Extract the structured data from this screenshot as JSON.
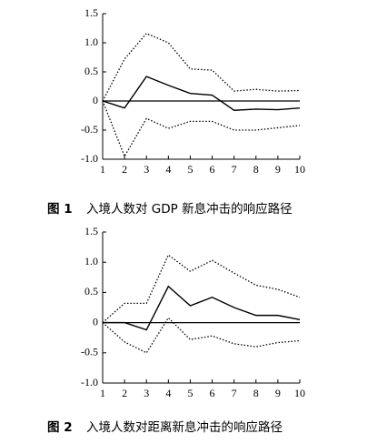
{
  "chart_data": [
    {
      "type": "line",
      "caption_label": "图 1",
      "caption": "入境人数对 GDP 新息冲击的响应路径",
      "x": [
        1,
        2,
        3,
        4,
        5,
        6,
        7,
        8,
        9,
        10
      ],
      "xlim": [
        1,
        10
      ],
      "xticks": [
        1,
        2,
        3,
        4,
        5,
        6,
        7,
        8,
        9,
        10
      ],
      "ylim": [
        -1,
        1.5
      ],
      "yticks": [
        1.5,
        {
          "value": 1,
          "label": "1.0"
        },
        0.5,
        0,
        -0.5,
        {
          "value": -1,
          "label": "-1.0"
        }
      ],
      "series": [
        {
          "color": "#000000",
          "style": "solid",
          "values": [
            0,
            -0.12,
            0.42,
            0.27,
            0.13,
            0.1,
            -0.16,
            -0.14,
            -0.15,
            -0.12
          ]
        },
        {
          "color": "#000000",
          "style": "dotted",
          "values": [
            0,
            0.72,
            1.16,
            1.0,
            0.55,
            0.53,
            0.17,
            0.2,
            0.17,
            0.18
          ]
        },
        {
          "color": "#000000",
          "style": "dotted",
          "values": [
            0,
            -0.95,
            -0.3,
            -0.47,
            -0.35,
            -0.35,
            -0.5,
            -0.5,
            -0.46,
            -0.42
          ]
        }
      ]
    },
    {
      "type": "line",
      "caption_label": "图 2",
      "caption": "入境人数对距离新息冲击的响应路径",
      "x": [
        1,
        2,
        3,
        4,
        5,
        6,
        7,
        8,
        9,
        10
      ],
      "xlim": [
        1,
        10
      ],
      "xticks": [
        1,
        2,
        3,
        4,
        5,
        6,
        7,
        8,
        9,
        10
      ],
      "ylim": [
        -1,
        1.5
      ],
      "yticks": [
        1.5,
        {
          "value": 1,
          "label": "1.0"
        },
        0.5,
        0,
        -0.5,
        {
          "value": -1,
          "label": "-1.0"
        }
      ],
      "series": [
        {
          "color": "#000000",
          "style": "solid",
          "values": [
            0,
            0,
            -0.12,
            0.6,
            0.28,
            0.42,
            0.25,
            0.12,
            0.12,
            0.05
          ]
        },
        {
          "color": "#000000",
          "style": "dotted",
          "values": [
            0,
            0.32,
            0.32,
            1.12,
            0.85,
            1.03,
            0.82,
            0.62,
            0.55,
            0.42
          ]
        },
        {
          "color": "#000000",
          "style": "dotted",
          "values": [
            0,
            -0.32,
            -0.5,
            0.08,
            -0.28,
            -0.22,
            -0.35,
            -0.4,
            -0.33,
            -0.3
          ]
        }
      ]
    }
  ]
}
